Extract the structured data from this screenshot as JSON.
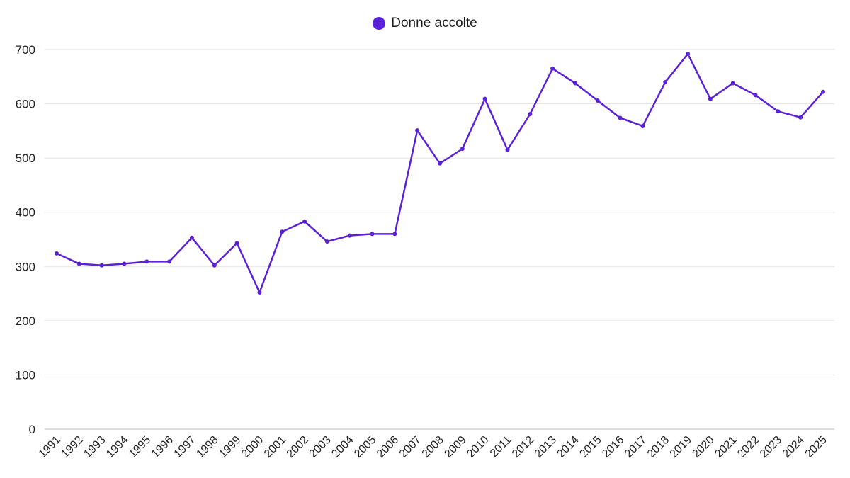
{
  "chart_data": {
    "type": "line",
    "title": "",
    "xlabel": "",
    "ylabel": "",
    "ylim": [
      0,
      700
    ],
    "yticks": [
      0,
      100,
      200,
      300,
      400,
      500,
      600,
      700
    ],
    "grid": true,
    "legend_position": "top-center",
    "categories": [
      "1991",
      "1992",
      "1993",
      "1994",
      "1995",
      "1996",
      "1997",
      "1998",
      "1999",
      "2000",
      "2001",
      "2002",
      "2003",
      "2004",
      "2005",
      "2006",
      "2007",
      "2008",
      "2009",
      "2010",
      "2011",
      "2012",
      "2013",
      "2014",
      "2015",
      "2016",
      "2017",
      "2018",
      "2019",
      "2020",
      "2021",
      "2022",
      "2023",
      "2024",
      "2025"
    ],
    "series": [
      {
        "name": "Donne accolte",
        "color": "#5b21d6",
        "values": [
          324,
          305,
          302,
          305,
          309,
          309,
          353,
          302,
          343,
          252,
          364,
          383,
          346,
          357,
          360,
          360,
          551,
          490,
          517,
          609,
          515,
          581,
          665,
          638,
          606,
          574,
          559,
          640,
          692,
          609,
          638,
          616,
          586,
          575,
          622
        ]
      }
    ]
  }
}
